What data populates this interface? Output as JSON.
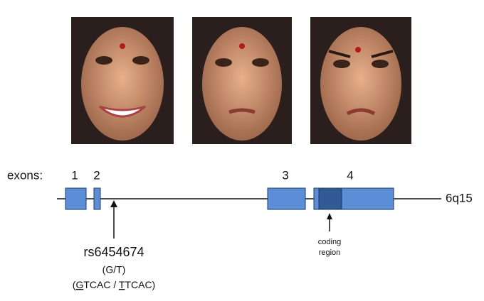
{
  "exons_label": "exons:",
  "exons": [
    {
      "label": "1"
    },
    {
      "label": "2"
    },
    {
      "label": "3"
    },
    {
      "label": "4"
    }
  ],
  "chromosome": "6q15",
  "snp": {
    "id": "rs6454674",
    "alleles": "(G/T)",
    "sequence": [
      "(",
      "G",
      "TCAC / ",
      "T",
      "TCAC)"
    ]
  },
  "coding_region": [
    "coding",
    "region"
  ]
}
